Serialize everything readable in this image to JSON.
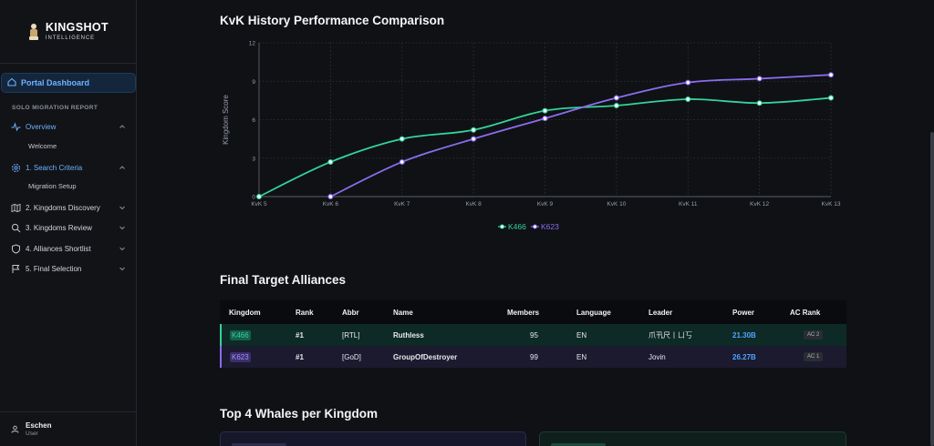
{
  "brand": {
    "title": "KINGSHOT",
    "subtitle": "INTELLIGENCE"
  },
  "sidebar": {
    "portal_label": "Portal Dashboard",
    "section_label": "SOLO MIGRATION REPORT",
    "items": [
      {
        "label": "Overview",
        "icon": "activity-icon",
        "active": true,
        "sub": "Welcome"
      },
      {
        "label": "1. Search Criteria",
        "icon": "gear-icon",
        "active": true,
        "sub": "Migration Setup"
      },
      {
        "label": "2. Kingdoms Discovery",
        "icon": "map-icon"
      },
      {
        "label": "3. Kingdoms Review",
        "icon": "search-icon"
      },
      {
        "label": "4. Alliances Shortlist",
        "icon": "shield-icon"
      },
      {
        "label": "5. Final Selection",
        "icon": "flag-icon"
      }
    ],
    "user": {
      "name": "Eschen",
      "role": "User"
    }
  },
  "sections": {
    "chart_title": "KvK History Performance Comparison",
    "table_title": "Final Target Alliances",
    "whales_title": "Top 4 Whales per Kingdom"
  },
  "chart_data": {
    "type": "line",
    "categories": [
      "KvK 5",
      "KvK 6",
      "KvK 7",
      "KvK 8",
      "KvK 9",
      "KvK 10",
      "KvK 11",
      "KvK 12",
      "KvK 13"
    ],
    "ylabel": "Kingdom Score",
    "ylim": [
      0,
      12
    ],
    "yticks": [
      0,
      3,
      6,
      9,
      12
    ],
    "grid": true,
    "legend": "bottom",
    "series": [
      {
        "name": "K466",
        "color": "#34d399",
        "values": [
          0,
          2.7,
          4.5,
          5.2,
          6.7,
          7.1,
          7.6,
          7.3,
          7.7
        ]
      },
      {
        "name": "K623",
        "color": "#8b6cf0",
        "values": [
          null,
          0,
          2.7,
          4.5,
          6.1,
          7.7,
          8.9,
          9.2,
          9.5
        ]
      }
    ]
  },
  "table": {
    "headers": [
      "Kingdom",
      "Rank",
      "Abbr",
      "Name",
      "Members",
      "Language",
      "Leader",
      "Power",
      "AC Rank"
    ],
    "rows": [
      {
        "kingdom": "K466",
        "rank": "#1",
        "abbr": "[RTL]",
        "name": "Ruthless",
        "members": "95",
        "language": "EN",
        "leader": "爪卂尺丨ㄩ丂",
        "power": "21.30B",
        "ac": "AC 2"
      },
      {
        "kingdom": "K623",
        "rank": "#1",
        "abbr": "[GoD]",
        "name": "GroupOfDestroyer",
        "members": "99",
        "language": "EN",
        "leader": "Jovin",
        "power": "26.27B",
        "ac": "AC 1"
      }
    ]
  },
  "colors": {
    "accent": "#6fb2ff",
    "green": "#34d399",
    "purple": "#8b6cf0",
    "power": "#4fa3ff"
  }
}
